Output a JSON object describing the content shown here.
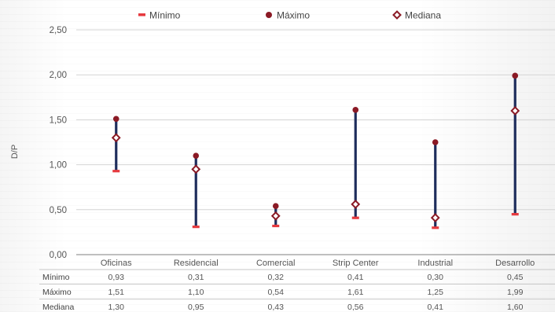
{
  "chart_data": {
    "type": "range",
    "categories": [
      "Oficinas",
      "Residencial",
      "Comercial",
      "Strip Center",
      "Industrial",
      "Desarrollo"
    ],
    "series": [
      {
        "name": "Mínimo",
        "values": [
          0.93,
          0.31,
          0.32,
          0.41,
          0.3,
          0.45
        ]
      },
      {
        "name": "Máximo",
        "values": [
          1.51,
          1.1,
          0.54,
          1.61,
          1.25,
          1.99
        ]
      },
      {
        "name": "Mediana",
        "values": [
          1.3,
          0.95,
          0.43,
          0.56,
          0.41,
          1.6
        ]
      }
    ],
    "ylabel": "D/P",
    "ylim": [
      0,
      2.5
    ],
    "yticks": [
      0,
      0.5,
      1.0,
      1.5,
      2.0,
      2.5
    ],
    "ytick_labels": [
      "0,00",
      "0,50",
      "1,00",
      "1,50",
      "2,00",
      "2,50"
    ],
    "legend_position": "top",
    "grid": true,
    "table": {
      "rows": [
        {
          "label": "Mínimo",
          "values": [
            "0,93",
            "0,31",
            "0,32",
            "0,41",
            "0,30",
            "0,45"
          ]
        },
        {
          "label": "Máximo",
          "values": [
            "1,51",
            "1,10",
            "0,54",
            "1,61",
            "1,25",
            "1,99"
          ]
        },
        {
          "label": "Mediana",
          "values": [
            "1,30",
            "0,95",
            "0,43",
            "0,56",
            "0,41",
            "1,60"
          ]
        }
      ]
    },
    "colors": {
      "range_bar": "#1e2d5c",
      "minimo": "#e63a3f",
      "maximo": "#8b1a25",
      "mediana": "#8b1a25",
      "grid": "#d4d4d4"
    }
  }
}
